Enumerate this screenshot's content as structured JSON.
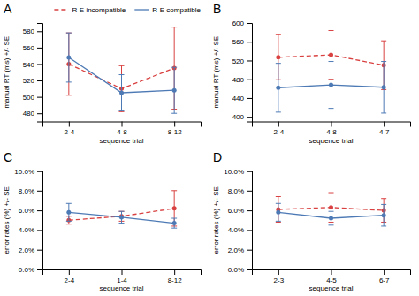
{
  "chart_data": [
    {
      "type": "line",
      "title": "A",
      "x_label": "sequence trial",
      "y_label": "manual RT (ms) +/- SE",
      "categories": [
        "2-4",
        "4-8",
        "8-12"
      ],
      "series": [
        {
          "name": "R-E incompatible",
          "color": "#d94040",
          "line_style": "dashed",
          "marker": "circle",
          "values": [
            540,
            510,
            535
          ],
          "errors": [
            38,
            28,
            50
          ]
        },
        {
          "name": "R-E compatible",
          "color": "#4d7ab5",
          "line_style": "solid",
          "marker": "circle",
          "values": [
            548,
            505,
            508
          ],
          "errors": [
            30,
            22,
            28
          ]
        }
      ],
      "ylim": [
        470,
        590
      ],
      "yticks": [
        480,
        500,
        520,
        540,
        560,
        580
      ],
      "legend": "upper right"
    },
    {
      "type": "line",
      "title": "B",
      "x_label": "sequence trial",
      "y_label": "manual RT (ms) +/- SE",
      "categories": [
        "2-4",
        "4-8",
        "4-7"
      ],
      "series": [
        {
          "color": "#d94040",
          "line_style": "dashed",
          "marker": "circle",
          "values": [
            527,
            532,
            510
          ],
          "errors": [
            48,
            52,
            52
          ]
        },
        {
          "color": "#4d7ab5",
          "line_style": "solid",
          "marker": "circle",
          "values": [
            462,
            468,
            463
          ],
          "errors": [
            52,
            50,
            55
          ]
        }
      ],
      "ylim": [
        390,
        600
      ],
      "yticks": [
        400,
        440,
        480,
        520,
        560,
        600
      ]
    },
    {
      "type": "line",
      "title": "C",
      "x_label": "sequence trial",
      "y_label": "error rates (%) +/- SE",
      "categories": [
        "2-4",
        "1-4",
        "8-12"
      ],
      "series": [
        {
          "color": "#d94040",
          "line_style": "dashed",
          "marker": "circle",
          "values": [
            5.0,
            5.4,
            6.2
          ],
          "errors": [
            0.4,
            0.5,
            1.8
          ]
        },
        {
          "color": "#4d7ab5",
          "line_style": "solid",
          "marker": "circle",
          "values": [
            5.8,
            5.3,
            4.7
          ],
          "errors": [
            0.9,
            0.6,
            0.5
          ]
        }
      ],
      "ylim": [
        0.0,
        10.0
      ],
      "yticks": [
        {
          "value": 0.0,
          "label": "0.0%"
        },
        {
          "value": 2.0,
          "label": "2.0%"
        },
        {
          "value": 4.0,
          "label": "4.0%"
        },
        {
          "value": 6.0,
          "label": "6.0%"
        },
        {
          "value": 8.0,
          "label": "8.0%"
        },
        {
          "value": 10.0,
          "label": "10.0%"
        }
      ]
    },
    {
      "type": "line",
      "title": "D",
      "x_label": "sequence trial",
      "y_label": "error rates (%) +/- SE",
      "categories": [
        "2-3",
        "4-5",
        "6-7"
      ],
      "series": [
        {
          "color": "#d94040",
          "line_style": "dashed",
          "marker": "circle",
          "values": [
            6.1,
            6.3,
            6.0
          ],
          "errors": [
            1.3,
            1.5,
            1.2
          ]
        },
        {
          "color": "#4d7ab5",
          "line_style": "solid",
          "marker": "circle",
          "values": [
            5.8,
            5.2,
            5.5
          ],
          "errors": [
            0.9,
            0.7,
            1.1
          ]
        }
      ],
      "ylim": [
        0.0,
        10.0
      ],
      "yticks": [
        {
          "value": 0.0,
          "label": "0.0%"
        },
        {
          "value": 2.0,
          "label": "2.0%"
        },
        {
          "value": 4.0,
          "label": "4.0%"
        },
        {
          "value": 6.0,
          "label": "6.0%"
        },
        {
          "value": 8.0,
          "label": "8.0%"
        },
        {
          "value": 10.0,
          "label": "10.0%"
        }
      ]
    }
  ]
}
